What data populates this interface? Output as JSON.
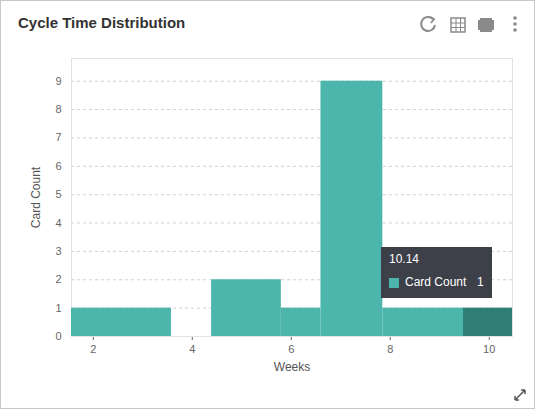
{
  "chart_data": {
    "type": "histogram",
    "title": "Cycle Time Distribution",
    "x_label": "Weeks",
    "y_label": "Card Count",
    "bins": [
      1.56,
      3.58,
      4.39,
      5.8,
      6.6,
      7.85,
      9.48,
      10.47
    ],
    "values": [
      1,
      0,
      2,
      1,
      9,
      1,
      1
    ],
    "colors": [
      "#4db6ac",
      "#4db6ac",
      "#4db6ac",
      "#4db6ac",
      "#4db6ac",
      "#4db6ac",
      "#2f7f77"
    ],
    "xlim": [
      1.56,
      10.47
    ],
    "xticks": [
      2,
      4,
      6,
      8,
      10
    ],
    "ylim": [
      0,
      9.8
    ],
    "yticks": [
      0,
      1,
      2,
      3,
      4,
      5,
      6,
      7,
      8,
      9
    ],
    "grid": true,
    "annotations": [
      {
        "title": "10.14",
        "label": "Card Count",
        "value": 1
      }
    ]
  }
}
